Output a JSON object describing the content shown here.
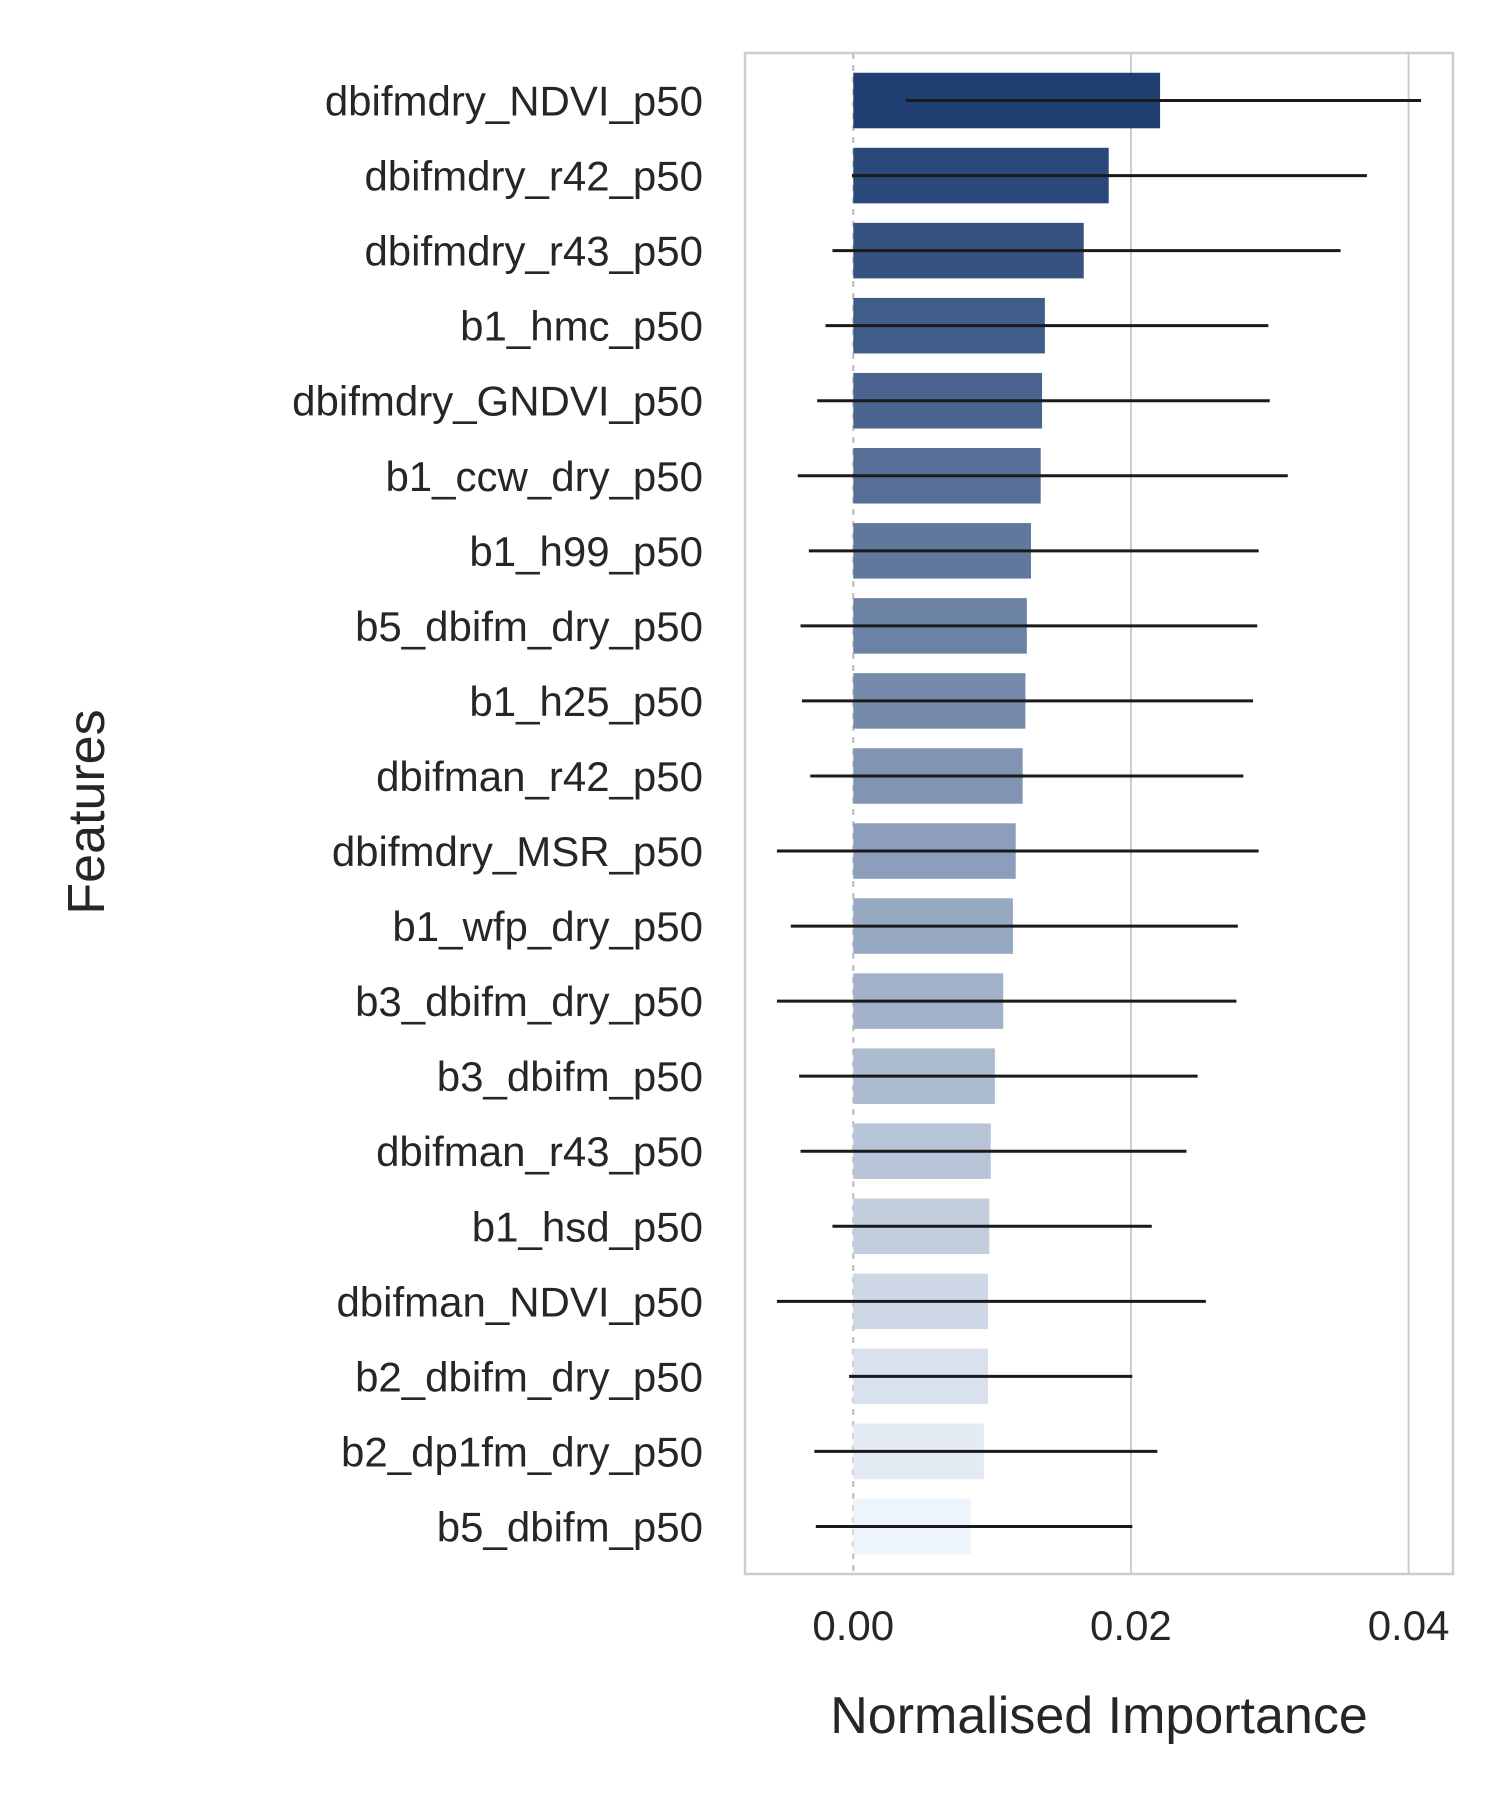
{
  "chart_data": {
    "type": "bar",
    "orientation": "horizontal",
    "title": "",
    "xlabel": "Normalised Importance",
    "ylabel": "Features",
    "xlim": [
      -0.0078,
      0.0432
    ],
    "xticks": [
      0.0,
      0.02,
      0.04
    ],
    "xtick_labels": [
      "0.00",
      "0.02",
      "0.04"
    ],
    "grid": "vertical",
    "colormap": "Blues",
    "color_dark": "#1f3f73",
    "color_light": "#eef4fb",
    "categories": [
      "dbifmdry_NDVI_p50",
      "dbifmdry_r42_p50",
      "dbifmdry_r43_p50",
      "b1_hmc_p50",
      "dbifmdry_GNDVI_p50",
      "b1_ccw_dry_p50",
      "b1_h99_p50",
      "b5_dbifm_dry_p50",
      "b1_h25_p50",
      "dbifman_r42_p50",
      "dbifmdry_MSR_p50",
      "b1_wfp_dry_p50",
      "b3_dbifm_dry_p50",
      "b3_dbifm_p50",
      "dbifman_r43_p50",
      "b1_hsd_p50",
      "dbifman_NDVI_p50",
      "b2_dbifm_dry_p50",
      "b2_dp1fm_dry_p50",
      "b5_dbifm_p50"
    ],
    "values": [
      0.0221,
      0.0184,
      0.0166,
      0.0138,
      0.0136,
      0.0135,
      0.0128,
      0.0125,
      0.0124,
      0.0122,
      0.0117,
      0.0115,
      0.0108,
      0.0102,
      0.0099,
      0.0098,
      0.0097,
      0.0097,
      0.0094,
      0.0085
    ],
    "error_low": [
      0.0038,
      -0.0001,
      -0.0015,
      -0.002,
      -0.0026,
      -0.004,
      -0.0032,
      -0.0038,
      -0.0037,
      -0.0031,
      -0.0055,
      -0.0045,
      -0.0055,
      -0.0039,
      -0.0038,
      -0.0015,
      -0.0055,
      -0.0003,
      -0.0028,
      -0.0027
    ],
    "error_high": [
      0.0409,
      0.037,
      0.0351,
      0.0299,
      0.03,
      0.0313,
      0.0292,
      0.0291,
      0.0288,
      0.0281,
      0.0292,
      0.0277,
      0.0276,
      0.0248,
      0.024,
      0.0215,
      0.0254,
      0.0201,
      0.0219,
      0.0201
    ]
  }
}
